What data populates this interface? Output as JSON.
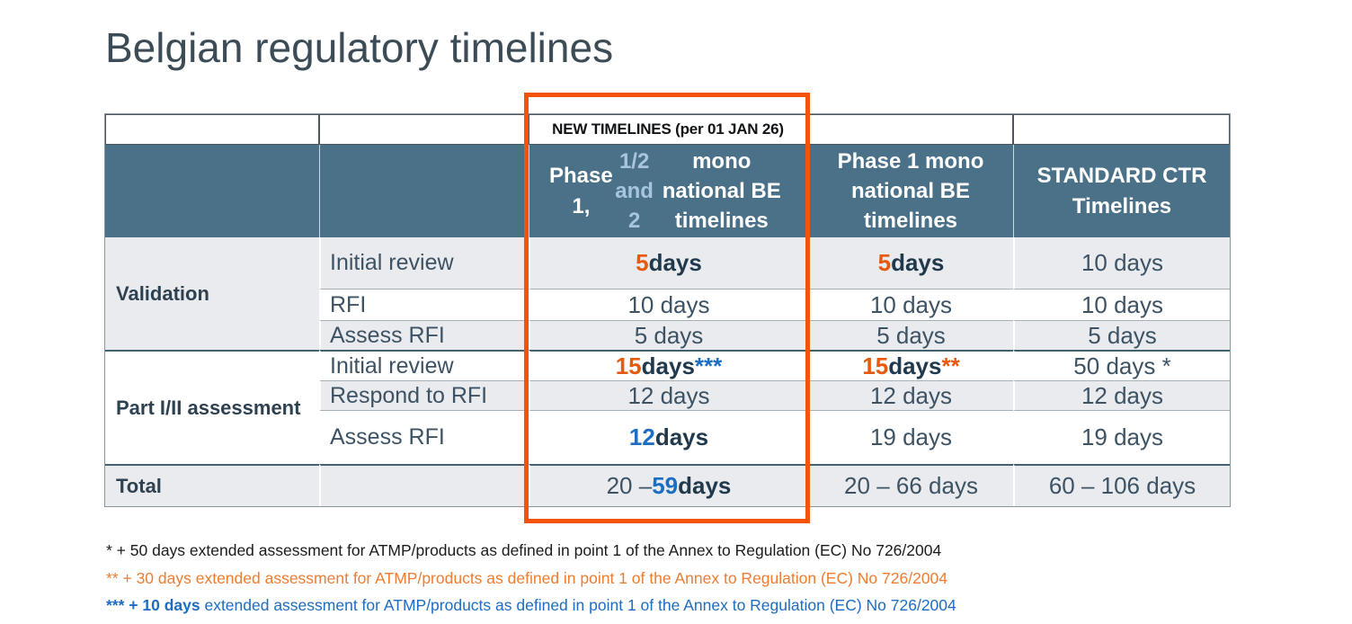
{
  "slide": {
    "title": "Belgian regulatory timelines",
    "colors": {
      "header_bg": "#4A7188",
      "row_alt_bg": "#E9EBEF",
      "accent_orange": "#E8590C",
      "accent_blue": "#1B6EC2",
      "highlight_box": "#F4530B",
      "header_light_blue": "#A9C5DD",
      "dark_text": "#20394C"
    },
    "table": {
      "banner": "NEW TIMELINES (per 01 JAN 26)",
      "headers": {
        "col3_rich": [
          {
            "t": "Phase 1,",
            "c": "white",
            "b": true
          },
          {
            "t": "1/2 and 2",
            "c": "ltblue",
            "b": true
          },
          {
            "t": " mono national BE timelines",
            "c": "white",
            "b": true
          }
        ],
        "col4": "Phase 1 mono national BE timelines",
        "col5": "STANDARD CTR Timelines"
      },
      "sections": [
        {
          "label": "Validation",
          "steps": [
            {
              "label": "Initial review",
              "values": [
                [
                  {
                    "t": "5",
                    "c": "orange",
                    "b": true
                  },
                  {
                    "t": " days",
                    "c": "dark",
                    "b": true
                  }
                ],
                [
                  {
                    "t": "5",
                    "c": "orange",
                    "b": true
                  },
                  {
                    "t": " days",
                    "c": "dark",
                    "b": true
                  }
                ],
                [
                  {
                    "t": "10 days"
                  }
                ]
              ]
            },
            {
              "label": "RFI",
              "values": [
                [
                  {
                    "t": "10 days"
                  }
                ],
                [
                  {
                    "t": "10 days"
                  }
                ],
                [
                  {
                    "t": "10 days"
                  }
                ]
              ]
            },
            {
              "label": "Assess RFI",
              "values": [
                [
                  {
                    "t": "5 days"
                  }
                ],
                [
                  {
                    "t": "5 days"
                  }
                ],
                [
                  {
                    "t": "5 days"
                  }
                ]
              ]
            }
          ]
        },
        {
          "label": "Part I/II assessment",
          "steps": [
            {
              "label": "Initial review",
              "values": [
                [
                  {
                    "t": "15",
                    "c": "orange",
                    "b": true
                  },
                  {
                    "t": " days ",
                    "c": "dark",
                    "b": true
                  },
                  {
                    "t": "***",
                    "c": "blue",
                    "b": true
                  }
                ],
                [
                  {
                    "t": "15",
                    "c": "orange",
                    "b": true
                  },
                  {
                    "t": " days ",
                    "c": "dark",
                    "b": true
                  },
                  {
                    "t": "**",
                    "c": "orange",
                    "b": true
                  }
                ],
                [
                  {
                    "t": "50 days *"
                  }
                ]
              ]
            },
            {
              "label": "Respond to RFI",
              "values": [
                [
                  {
                    "t": "12 days"
                  }
                ],
                [
                  {
                    "t": "12 days"
                  }
                ],
                [
                  {
                    "t": "12 days"
                  }
                ]
              ]
            },
            {
              "label": "Assess RFI",
              "values": [
                [
                  {
                    "t": "12",
                    "c": "blue",
                    "b": true
                  },
                  {
                    "t": " days",
                    "c": "dark",
                    "b": true
                  }
                ],
                [
                  {
                    "t": "19 days"
                  }
                ],
                [
                  {
                    "t": "19 days"
                  }
                ]
              ]
            }
          ]
        }
      ],
      "total": {
        "label": "Total",
        "values": [
          [
            {
              "t": "20 – "
            },
            {
              "t": "59",
              "c": "blue",
              "b": true
            },
            {
              "t": " days",
              "c": "dark",
              "b": true
            }
          ],
          [
            {
              "t": "20 – 66 days"
            }
          ],
          [
            {
              "t": "60 – 106 days"
            }
          ]
        ]
      }
    },
    "footnotes": [
      {
        "rich": [
          {
            "t": "* + 50 days extended assessment for ATMP/products as defined in point 1 of the Annex to Regulation (EC) No 726/2004"
          }
        ]
      },
      {
        "rich": [
          {
            "t": "** + 30 days extended assessment for ATMP/products as defined in point 1 of the Annex to Regulation (EC) No 726/2004"
          }
        ]
      },
      {
        "rich": [
          {
            "t": "*** ",
            "b": true
          },
          {
            "t": "+ 10 days",
            "b": true
          },
          {
            "t": " extended assessment for ATMP/products as defined in point 1 of the Annex to Regulation (EC) No 726/2004"
          }
        ]
      }
    ]
  }
}
